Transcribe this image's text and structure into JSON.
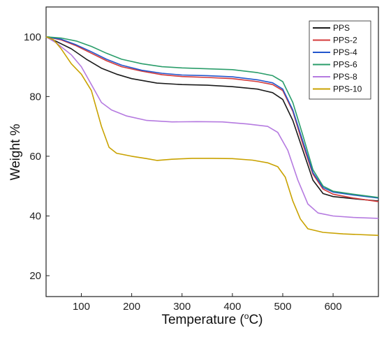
{
  "chart_data": {
    "type": "line",
    "title": "",
    "xlabel": "Temperature (",
    "xlabel_sup": "o",
    "xlabel_end": "C)",
    "ylabel": "Weight %",
    "xlim": [
      30,
      690
    ],
    "ylim": [
      13,
      110
    ],
    "x_ticks": [
      100,
      200,
      300,
      400,
      500,
      600
    ],
    "y_ticks": [
      20,
      40,
      60,
      80,
      100
    ],
    "grid": false,
    "legend_position": "top-right",
    "series": [
      {
        "name": "PPS",
        "color": "#1a1a1a",
        "points": [
          [
            30,
            100
          ],
          [
            50,
            98.5
          ],
          [
            80,
            96
          ],
          [
            110,
            92.5
          ],
          [
            140,
            89.5
          ],
          [
            170,
            87.5
          ],
          [
            200,
            86
          ],
          [
            250,
            84.5
          ],
          [
            300,
            84
          ],
          [
            350,
            83.8
          ],
          [
            400,
            83.3
          ],
          [
            450,
            82.5
          ],
          [
            480,
            81.3
          ],
          [
            500,
            79
          ],
          [
            520,
            72
          ],
          [
            540,
            62
          ],
          [
            560,
            52
          ],
          [
            580,
            47.5
          ],
          [
            600,
            46.5
          ],
          [
            640,
            45.8
          ],
          [
            690,
            45
          ]
        ]
      },
      {
        "name": "PPS-2",
        "color": "#d43a3a",
        "points": [
          [
            30,
            100
          ],
          [
            60,
            99
          ],
          [
            90,
            97
          ],
          [
            120,
            94.5
          ],
          [
            150,
            92
          ],
          [
            180,
            90
          ],
          [
            220,
            88.5
          ],
          [
            260,
            87.3
          ],
          [
            300,
            86.7
          ],
          [
            350,
            86.4
          ],
          [
            400,
            86
          ],
          [
            450,
            85
          ],
          [
            480,
            84
          ],
          [
            500,
            82
          ],
          [
            520,
            75
          ],
          [
            540,
            64
          ],
          [
            560,
            54
          ],
          [
            580,
            49
          ],
          [
            600,
            47.3
          ],
          [
            640,
            46
          ],
          [
            690,
            44.8
          ]
        ]
      },
      {
        "name": "PPS-4",
        "color": "#2255cc",
        "points": [
          [
            30,
            100
          ],
          [
            60,
            99.2
          ],
          [
            90,
            97.3
          ],
          [
            120,
            95
          ],
          [
            150,
            92.5
          ],
          [
            180,
            90.5
          ],
          [
            220,
            88.8
          ],
          [
            260,
            87.8
          ],
          [
            300,
            87.2
          ],
          [
            350,
            87
          ],
          [
            400,
            86.6
          ],
          [
            450,
            85.6
          ],
          [
            480,
            84.6
          ],
          [
            500,
            82.5
          ],
          [
            520,
            75.5
          ],
          [
            540,
            65
          ],
          [
            560,
            54.5
          ],
          [
            580,
            49.5
          ],
          [
            600,
            48
          ],
          [
            640,
            47
          ],
          [
            690,
            46
          ]
        ]
      },
      {
        "name": "PPS-6",
        "color": "#2a9d6a",
        "points": [
          [
            30,
            100
          ],
          [
            60,
            99.6
          ],
          [
            90,
            98.6
          ],
          [
            120,
            96.8
          ],
          [
            150,
            94.5
          ],
          [
            180,
            92.5
          ],
          [
            220,
            91
          ],
          [
            260,
            90
          ],
          [
            300,
            89.6
          ],
          [
            350,
            89.3
          ],
          [
            400,
            89
          ],
          [
            450,
            88
          ],
          [
            480,
            87
          ],
          [
            500,
            85
          ],
          [
            520,
            78
          ],
          [
            540,
            67
          ],
          [
            560,
            55.5
          ],
          [
            580,
            50
          ],
          [
            600,
            48.3
          ],
          [
            640,
            47.3
          ],
          [
            690,
            46.2
          ]
        ]
      },
      {
        "name": "PPS-8",
        "color": "#b57ae0",
        "points": [
          [
            30,
            100
          ],
          [
            50,
            98
          ],
          [
            80,
            94
          ],
          [
            100,
            90
          ],
          [
            120,
            84
          ],
          [
            140,
            78
          ],
          [
            160,
            75.5
          ],
          [
            190,
            73.5
          ],
          [
            230,
            72
          ],
          [
            280,
            71.5
          ],
          [
            330,
            71.6
          ],
          [
            380,
            71.5
          ],
          [
            430,
            70.8
          ],
          [
            470,
            70
          ],
          [
            490,
            68
          ],
          [
            510,
            62
          ],
          [
            530,
            52
          ],
          [
            550,
            44
          ],
          [
            570,
            41
          ],
          [
            600,
            40
          ],
          [
            640,
            39.5
          ],
          [
            690,
            39.2
          ]
        ]
      },
      {
        "name": "PPS-10",
        "color": "#c9a200",
        "points": [
          [
            30,
            100
          ],
          [
            45,
            99
          ],
          [
            60,
            96
          ],
          [
            80,
            91
          ],
          [
            100,
            87.5
          ],
          [
            120,
            82
          ],
          [
            140,
            70
          ],
          [
            155,
            63
          ],
          [
            170,
            61
          ],
          [
            200,
            60
          ],
          [
            230,
            59.2
          ],
          [
            250,
            58.6
          ],
          [
            280,
            59
          ],
          [
            320,
            59.3
          ],
          [
            360,
            59.3
          ],
          [
            400,
            59.2
          ],
          [
            440,
            58.7
          ],
          [
            470,
            57.8
          ],
          [
            490,
            56.5
          ],
          [
            505,
            53
          ],
          [
            520,
            45
          ],
          [
            535,
            39
          ],
          [
            550,
            35.7
          ],
          [
            580,
            34.5
          ],
          [
            620,
            34
          ],
          [
            690,
            33.5
          ]
        ]
      }
    ]
  }
}
